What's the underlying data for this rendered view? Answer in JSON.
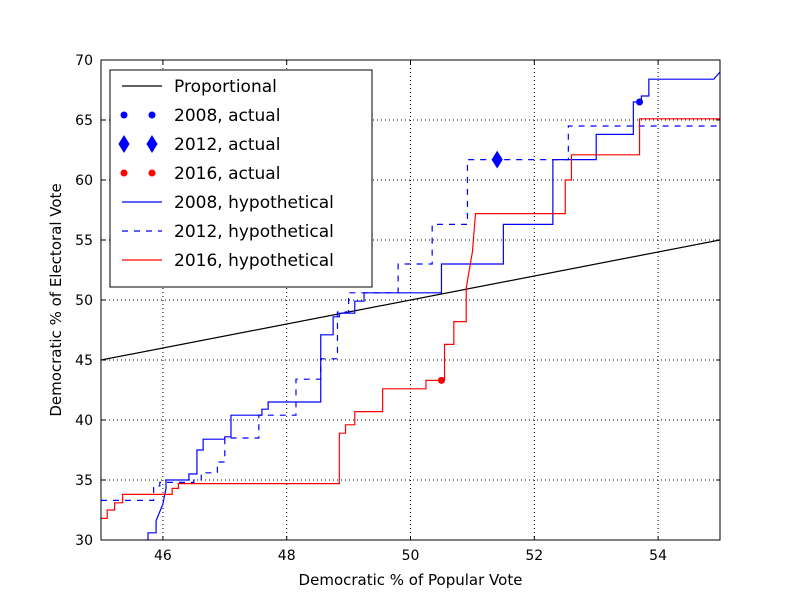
{
  "chart_data": {
    "type": "line",
    "title": "",
    "xlabel": "Democratic % of Popular Vote",
    "ylabel": "Democratic % of Electoral Vote",
    "xlim": [
      45,
      55
    ],
    "ylim": [
      30,
      70
    ],
    "xticks": [
      46,
      48,
      50,
      52,
      54
    ],
    "yticks": [
      30,
      35,
      40,
      45,
      50,
      55,
      60,
      65,
      70
    ],
    "grid": true,
    "legend_position": "upper-left",
    "series": [
      {
        "name": "Proportional",
        "kind": "line",
        "style": "solid",
        "color": "#000000",
        "x": [
          45,
          55
        ],
        "y": [
          45,
          55
        ]
      },
      {
        "name": "2008, actual",
        "kind": "point",
        "marker": "circle",
        "color": "#0000ff",
        "x": [
          53.7
        ],
        "y": [
          66.5
        ]
      },
      {
        "name": "2012, actual",
        "kind": "point",
        "marker": "diamond",
        "color": "#0000ff",
        "x": [
          51.4
        ],
        "y": [
          61.7
        ]
      },
      {
        "name": "2016, actual",
        "kind": "point",
        "marker": "circle",
        "color": "#ff0000",
        "x": [
          50.5
        ],
        "y": [
          43.3
        ]
      },
      {
        "name": "2008, hypothetical",
        "kind": "line",
        "style": "solid",
        "color": "#0000ff",
        "x": [
          45.72,
          45.76,
          45.76,
          45.89,
          45.89,
          46.0,
          46.05,
          46.05,
          46.42,
          46.42,
          46.55,
          46.55,
          46.65,
          46.65,
          47.0,
          47.0,
          47.1,
          47.1,
          47.6,
          47.6,
          47.7,
          47.7,
          48.55,
          48.55,
          48.75,
          48.75,
          48.85,
          48.85,
          49.1,
          49.1,
          49.25,
          49.25,
          50.5,
          50.5,
          51.35,
          51.35,
          51.5,
          51.5,
          52.3,
          52.3,
          52.5,
          52.5,
          53.0,
          53.0,
          53.38,
          53.38,
          53.6,
          53.6,
          53.73,
          53.73,
          53.85,
          53.85,
          54.9,
          55.0
        ],
        "y": [
          30,
          30,
          30.6,
          30.6,
          31.6,
          33.0,
          34.3,
          35.0,
          35.0,
          35.5,
          35.5,
          37.5,
          37.5,
          38.4,
          38.4,
          38.6,
          38.6,
          40.4,
          40.4,
          40.9,
          40.9,
          41.5,
          41.5,
          47.1,
          47.1,
          48.6,
          48.6,
          48.9,
          48.9,
          49.9,
          49.9,
          50.6,
          50.6,
          53.0,
          53.0,
          53.0,
          53.0,
          56.3,
          56.3,
          61.7,
          61.7,
          61.7,
          61.7,
          63.8,
          63.8,
          63.8,
          63.8,
          66.5,
          66.5,
          67.0,
          67.0,
          68.4,
          68.4,
          69.0
        ]
      },
      {
        "name": "2012, hypothetical",
        "kind": "line",
        "style": "dashed",
        "color": "#0000ff",
        "x": [
          45.0,
          45.85,
          45.85,
          45.95,
          45.95,
          46.5,
          46.5,
          46.62,
          46.62,
          46.88,
          46.88,
          47.0,
          47.0,
          47.55,
          47.55,
          47.65,
          47.65,
          48.15,
          48.15,
          48.25,
          48.25,
          48.55,
          48.55,
          48.82,
          48.82,
          49.0,
          49.0,
          49.1,
          49.1,
          49.8,
          49.8,
          50.35,
          50.35,
          50.45,
          50.45,
          50.92,
          50.92,
          51.15,
          51.15,
          52.55,
          52.55,
          52.65,
          52.65,
          55.0
        ],
        "y": [
          33.3,
          33.3,
          34.5,
          34.5,
          34.8,
          34.8,
          35.0,
          35.0,
          35.6,
          35.6,
          36.5,
          36.5,
          38.5,
          38.5,
          40.4,
          40.4,
          40.4,
          40.4,
          43.4,
          43.4,
          43.4,
          43.4,
          45.1,
          45.1,
          49.0,
          49.0,
          50.6,
          50.6,
          50.6,
          50.6,
          53.0,
          53.0,
          56.3,
          56.3,
          56.3,
          56.3,
          61.7,
          61.7,
          61.7,
          61.7,
          64.5,
          64.5,
          64.5,
          64.5
        ]
      },
      {
        "name": "2016, hypothetical",
        "kind": "line",
        "style": "solid",
        "color": "#ff0000",
        "x": [
          45.0,
          45.1,
          45.1,
          45.22,
          45.22,
          45.35,
          45.35,
          46.15,
          46.15,
          46.25,
          46.25,
          48.85,
          48.85,
          48.95,
          48.95,
          49.1,
          49.1,
          49.2,
          49.2,
          49.55,
          49.55,
          50.25,
          50.25,
          50.4,
          50.4,
          50.55,
          50.55,
          50.7,
          50.7,
          50.9,
          50.9,
          51.0,
          51.05,
          51.2,
          51.2,
          52.5,
          52.5,
          52.6,
          52.6,
          52.75,
          52.75,
          53.7,
          53.7,
          55.0
        ],
        "y": [
          31.8,
          31.8,
          32.5,
          32.5,
          33.1,
          33.1,
          33.8,
          33.8,
          34.3,
          34.3,
          34.7,
          34.7,
          38.9,
          38.9,
          39.6,
          39.6,
          40.7,
          40.7,
          40.7,
          40.7,
          42.6,
          42.6,
          43.3,
          43.3,
          43.3,
          43.3,
          46.3,
          46.3,
          48.2,
          48.2,
          51.0,
          54.0,
          57.2,
          57.2,
          57.2,
          57.2,
          60.0,
          60.0,
          62.1,
          62.1,
          62.1,
          62.1,
          65.1,
          65.1
        ]
      }
    ]
  }
}
